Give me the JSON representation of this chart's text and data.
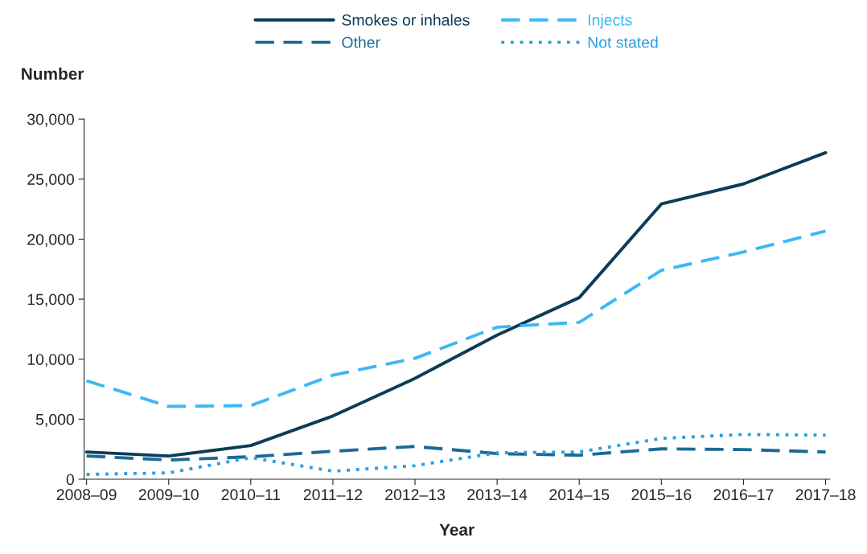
{
  "chart_data": {
    "type": "line",
    "xlabel": "Year",
    "ylabel": "Number",
    "categories": [
      "2008–09",
      "2009–10",
      "2010–11",
      "2011–12",
      "2012–13",
      "2013–14",
      "2014–15",
      "2015–16",
      "2016–17",
      "2017–18"
    ],
    "series": [
      {
        "name": "Smokes or inhales",
        "color": "#0d3c55",
        "line_style": "solid",
        "values": [
          2270,
          1930,
          2800,
          5270,
          8400,
          12000,
          15130,
          22930,
          24600,
          27200
        ]
      },
      {
        "name": "Other",
        "color": "#1a6b96",
        "line_style": "dashed",
        "values": [
          1930,
          1600,
          1870,
          2330,
          2730,
          2130,
          2000,
          2530,
          2470,
          2270
        ]
      },
      {
        "name": "Injects",
        "color": "#3db8f5",
        "line_style": "dashed",
        "values": [
          8200,
          6070,
          6130,
          8670,
          10070,
          12670,
          13070,
          17400,
          18930,
          20670
        ]
      },
      {
        "name": "Not stated",
        "color": "#2a9fe0",
        "line_style": "dotted",
        "values": [
          400,
          530,
          1800,
          670,
          1130,
          2200,
          2270,
          3400,
          3730,
          3670
        ]
      }
    ],
    "ylim": [
      0,
      30000
    ],
    "yticks": [
      {
        "value": 0,
        "label": "0"
      },
      {
        "value": 5000,
        "label": "5,000"
      },
      {
        "value": 10000,
        "label": "10,000"
      },
      {
        "value": 15000,
        "label": "15,000"
      },
      {
        "value": 20000,
        "label": "20,000"
      },
      {
        "value": 25000,
        "label": "25,000"
      },
      {
        "value": 30000,
        "label": "30,000"
      }
    ],
    "grid": false,
    "legend": "top",
    "marker": "none"
  }
}
